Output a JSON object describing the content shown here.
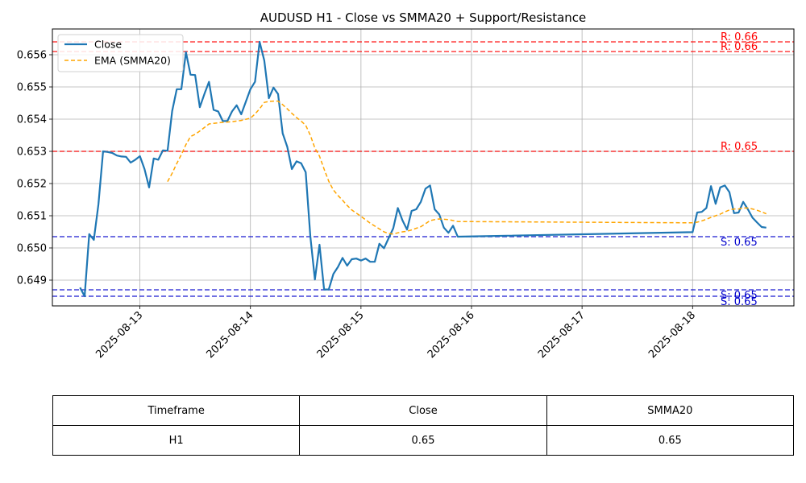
{
  "chart_data": {
    "type": "line",
    "title": "AUDUSD H1 - Close vs SMMA20 + Support/Resistance",
    "xlabel": "",
    "ylabel": "",
    "x_ticks": [
      "2025-08-13",
      "2025-08-14",
      "2025-08-15",
      "2025-08-16",
      "2025-08-17",
      "2025-08-18"
    ],
    "y_ticks": [
      "0.649",
      "0.650",
      "0.651",
      "0.652",
      "0.653",
      "0.654",
      "0.655",
      "0.656"
    ],
    "xlim": [
      "2025-08-12 05:00",
      "2025-08-18 22:00"
    ],
    "ylim": [
      0.6482,
      0.6568
    ],
    "grid": true,
    "legend": "upper-left",
    "series": [
      {
        "name": "Close",
        "color": "#1f77b4",
        "style": "solid",
        "points": [
          [
            "2025-08-12 11:00",
            0.64877
          ],
          [
            "2025-08-12 12:00",
            0.6485
          ],
          [
            "2025-08-12 13:00",
            0.65043
          ],
          [
            "2025-08-12 14:00",
            0.65025
          ],
          [
            "2025-08-12 15:00",
            0.65135
          ],
          [
            "2025-08-12 16:00",
            0.653
          ],
          [
            "2025-08-12 17:00",
            0.65298
          ],
          [
            "2025-08-12 18:00",
            0.65295
          ],
          [
            "2025-08-12 19:00",
            0.65287
          ],
          [
            "2025-08-12 20:00",
            0.65284
          ],
          [
            "2025-08-12 21:00",
            0.65283
          ],
          [
            "2025-08-12 22:00",
            0.65265
          ],
          [
            "2025-08-12 23:00",
            0.65274
          ],
          [
            "2025-08-13 00:00",
            0.65285
          ],
          [
            "2025-08-13 01:00",
            0.65245
          ],
          [
            "2025-08-13 02:00",
            0.65188
          ],
          [
            "2025-08-13 03:00",
            0.65278
          ],
          [
            "2025-08-13 04:00",
            0.65274
          ],
          [
            "2025-08-13 05:00",
            0.65303
          ],
          [
            "2025-08-13 06:00",
            0.65302
          ],
          [
            "2025-08-13 07:00",
            0.65425
          ],
          [
            "2025-08-13 08:00",
            0.65493
          ],
          [
            "2025-08-13 09:00",
            0.65493
          ],
          [
            "2025-08-13 10:00",
            0.65608
          ],
          [
            "2025-08-13 11:00",
            0.65538
          ],
          [
            "2025-08-13 12:00",
            0.65537
          ],
          [
            "2025-08-13 13:00",
            0.65437
          ],
          [
            "2025-08-13 14:00",
            0.65478
          ],
          [
            "2025-08-13 15:00",
            0.65516
          ],
          [
            "2025-08-13 16:00",
            0.65429
          ],
          [
            "2025-08-13 17:00",
            0.65424
          ],
          [
            "2025-08-13 18:00",
            0.65394
          ],
          [
            "2025-08-13 19:00",
            0.65394
          ],
          [
            "2025-08-13 20:00",
            0.65424
          ],
          [
            "2025-08-13 21:00",
            0.65443
          ],
          [
            "2025-08-13 22:00",
            0.65415
          ],
          [
            "2025-08-13 23:00",
            0.65454
          ],
          [
            "2025-08-14 00:00",
            0.65493
          ],
          [
            "2025-08-14 01:00",
            0.65516
          ],
          [
            "2025-08-14 02:00",
            0.6564
          ],
          [
            "2025-08-14 03:00",
            0.65582
          ],
          [
            "2025-08-14 04:00",
            0.65465
          ],
          [
            "2025-08-14 05:00",
            0.65498
          ],
          [
            "2025-08-14 06:00",
            0.65478
          ],
          [
            "2025-08-14 07:00",
            0.65356
          ],
          [
            "2025-08-14 08:00",
            0.65314
          ],
          [
            "2025-08-14 09:00",
            0.65245
          ],
          [
            "2025-08-14 10:00",
            0.65269
          ],
          [
            "2025-08-14 11:00",
            0.65263
          ],
          [
            "2025-08-14 12:00",
            0.65235
          ],
          [
            "2025-08-14 13:00",
            0.65037
          ],
          [
            "2025-08-14 14:00",
            0.64902
          ],
          [
            "2025-08-14 15:00",
            0.6501
          ],
          [
            "2025-08-14 16:00",
            0.64871
          ],
          [
            "2025-08-14 17:00",
            0.64871
          ],
          [
            "2025-08-14 18:00",
            0.64919
          ],
          [
            "2025-08-14 19:00",
            0.64941
          ],
          [
            "2025-08-14 20:00",
            0.64969
          ],
          [
            "2025-08-14 21:00",
            0.64945
          ],
          [
            "2025-08-14 22:00",
            0.64965
          ],
          [
            "2025-08-14 23:00",
            0.64967
          ],
          [
            "2025-08-15 00:00",
            0.64961
          ],
          [
            "2025-08-15 01:00",
            0.64967
          ],
          [
            "2025-08-15 02:00",
            0.64957
          ],
          [
            "2025-08-15 03:00",
            0.64957
          ],
          [
            "2025-08-15 04:00",
            0.65013
          ],
          [
            "2025-08-15 05:00",
            0.64999
          ],
          [
            "2025-08-15 06:00",
            0.6503
          ],
          [
            "2025-08-15 07:00",
            0.65061
          ],
          [
            "2025-08-15 08:00",
            0.65124
          ],
          [
            "2025-08-15 09:00",
            0.65086
          ],
          [
            "2025-08-15 10:00",
            0.65057
          ],
          [
            "2025-08-15 11:00",
            0.65115
          ],
          [
            "2025-08-15 12:00",
            0.6512
          ],
          [
            "2025-08-15 13:00",
            0.65143
          ],
          [
            "2025-08-15 14:00",
            0.65184
          ],
          [
            "2025-08-15 15:00",
            0.65194
          ],
          [
            "2025-08-15 16:00",
            0.6512
          ],
          [
            "2025-08-15 17:00",
            0.65104
          ],
          [
            "2025-08-15 18:00",
            0.65063
          ],
          [
            "2025-08-15 19:00",
            0.65047
          ],
          [
            "2025-08-15 20:00",
            0.65069
          ],
          [
            "2025-08-15 21:00",
            0.65035
          ],
          [
            "2025-08-18 00:00",
            0.65049
          ],
          [
            "2025-08-18 01:00",
            0.6511
          ],
          [
            "2025-08-18 02:00",
            0.65112
          ],
          [
            "2025-08-18 03:00",
            0.65124
          ],
          [
            "2025-08-18 04:00",
            0.65192
          ],
          [
            "2025-08-18 05:00",
            0.65137
          ],
          [
            "2025-08-18 06:00",
            0.65188
          ],
          [
            "2025-08-18 07:00",
            0.65194
          ],
          [
            "2025-08-18 08:00",
            0.65173
          ],
          [
            "2025-08-18 09:00",
            0.65108
          ],
          [
            "2025-08-18 10:00",
            0.6511
          ],
          [
            "2025-08-18 11:00",
            0.65143
          ],
          [
            "2025-08-18 12:00",
            0.6512
          ],
          [
            "2025-08-18 13:00",
            0.65094
          ],
          [
            "2025-08-18 14:00",
            0.65079
          ],
          [
            "2025-08-18 15:00",
            0.65065
          ],
          [
            "2025-08-18 16:00",
            0.65063
          ]
        ]
      },
      {
        "name": "EMA (SMMA20)",
        "color": "#ffa500",
        "style": "dashed",
        "points": [
          [
            "2025-08-13 06:00",
            0.65206
          ],
          [
            "2025-08-13 07:00",
            0.65232
          ],
          [
            "2025-08-13 08:00",
            0.65262
          ],
          [
            "2025-08-13 09:00",
            0.6529
          ],
          [
            "2025-08-13 10:00",
            0.65321
          ],
          [
            "2025-08-13 11:00",
            0.65346
          ],
          [
            "2025-08-13 12:00",
            0.65353
          ],
          [
            "2025-08-13 13:00",
            0.65363
          ],
          [
            "2025-08-13 14:00",
            0.65374
          ],
          [
            "2025-08-13 15:00",
            0.65385
          ],
          [
            "2025-08-13 16:00",
            0.65387
          ],
          [
            "2025-08-13 18:00",
            0.6539
          ],
          [
            "2025-08-13 20:00",
            0.65392
          ],
          [
            "2025-08-13 22:00",
            0.65396
          ],
          [
            "2025-08-14 00:00",
            0.65403
          ],
          [
            "2025-08-14 01:00",
            0.65416
          ],
          [
            "2025-08-14 02:00",
            0.65432
          ],
          [
            "2025-08-14 03:00",
            0.65452
          ],
          [
            "2025-08-14 04:00",
            0.65455
          ],
          [
            "2025-08-14 05:00",
            0.65456
          ],
          [
            "2025-08-14 06:00",
            0.65456
          ],
          [
            "2025-08-14 07:00",
            0.65445
          ],
          [
            "2025-08-14 08:00",
            0.65432
          ],
          [
            "2025-08-14 09:00",
            0.65418
          ],
          [
            "2025-08-14 10:00",
            0.65405
          ],
          [
            "2025-08-14 11:00",
            0.65394
          ],
          [
            "2025-08-14 12:00",
            0.65381
          ],
          [
            "2025-08-14 13:00",
            0.6535
          ],
          [
            "2025-08-14 14:00",
            0.6531
          ],
          [
            "2025-08-14 15:00",
            0.65285
          ],
          [
            "2025-08-14 16:00",
            0.65245
          ],
          [
            "2025-08-14 17:00",
            0.65207
          ],
          [
            "2025-08-14 18:00",
            0.6518
          ],
          [
            "2025-08-14 19:00",
            0.65163
          ],
          [
            "2025-08-14 20:00",
            0.65148
          ],
          [
            "2025-08-14 21:00",
            0.65132
          ],
          [
            "2025-08-14 22:00",
            0.65118
          ],
          [
            "2025-08-15 00:00",
            0.65098
          ],
          [
            "2025-08-15 02:00",
            0.65077
          ],
          [
            "2025-08-15 04:00",
            0.65059
          ],
          [
            "2025-08-15 05:00",
            0.6505
          ],
          [
            "2025-08-15 06:00",
            0.65045
          ],
          [
            "2025-08-15 07:00",
            0.65043
          ],
          [
            "2025-08-15 08:00",
            0.65047
          ],
          [
            "2025-08-15 09:00",
            0.6505
          ],
          [
            "2025-08-15 10:00",
            0.65052
          ],
          [
            "2025-08-15 11:00",
            0.65056
          ],
          [
            "2025-08-15 12:00",
            0.65061
          ],
          [
            "2025-08-15 13:00",
            0.65066
          ],
          [
            "2025-08-15 14:00",
            0.65075
          ],
          [
            "2025-08-15 15:00",
            0.65085
          ],
          [
            "2025-08-15 16:00",
            0.65088
          ],
          [
            "2025-08-15 17:00",
            0.6509
          ],
          [
            "2025-08-15 18:00",
            0.65089
          ],
          [
            "2025-08-15 19:00",
            0.65088
          ],
          [
            "2025-08-15 21:00",
            0.65082
          ],
          [
            "2025-08-18 00:00",
            0.65078
          ],
          [
            "2025-08-18 01:00",
            0.6508
          ],
          [
            "2025-08-18 02:00",
            0.65084
          ],
          [
            "2025-08-18 03:00",
            0.65089
          ],
          [
            "2025-08-18 04:00",
            0.65095
          ],
          [
            "2025-08-18 05:00",
            0.651
          ],
          [
            "2025-08-18 06:00",
            0.65105
          ],
          [
            "2025-08-18 07:00",
            0.65112
          ],
          [
            "2025-08-18 08:00",
            0.65118
          ],
          [
            "2025-08-18 09:00",
            0.65121
          ],
          [
            "2025-08-18 10:00",
            0.65121
          ],
          [
            "2025-08-18 11:00",
            0.65124
          ],
          [
            "2025-08-18 12:00",
            0.65124
          ],
          [
            "2025-08-18 13:00",
            0.65121
          ],
          [
            "2025-08-18 14:00",
            0.65117
          ],
          [
            "2025-08-18 15:00",
            0.65112
          ],
          [
            "2025-08-18 16:00",
            0.65106
          ]
        ]
      }
    ],
    "levels": [
      {
        "kind": "resistance",
        "value": 0.6564,
        "label": "R: 0.66",
        "color": "#ff0000"
      },
      {
        "kind": "resistance",
        "value": 0.6561,
        "label": "R: 0.66",
        "color": "#ff0000"
      },
      {
        "kind": "resistance",
        "value": 0.653,
        "label": "R: 0.65",
        "color": "#ff0000"
      },
      {
        "kind": "support",
        "value": 0.65035,
        "label": "S: 0.65",
        "color": "#0000cc"
      },
      {
        "kind": "support",
        "value": 0.6487,
        "label": "S: 0.65",
        "color": "#0000cc"
      },
      {
        "kind": "support",
        "value": 0.6485,
        "label": "S: 0.65",
        "color": "#0000cc"
      }
    ]
  },
  "table": {
    "headers": [
      "Timeframe",
      "Close",
      "SMMA20"
    ],
    "row": [
      "H1",
      "0.65",
      "0.65"
    ]
  }
}
